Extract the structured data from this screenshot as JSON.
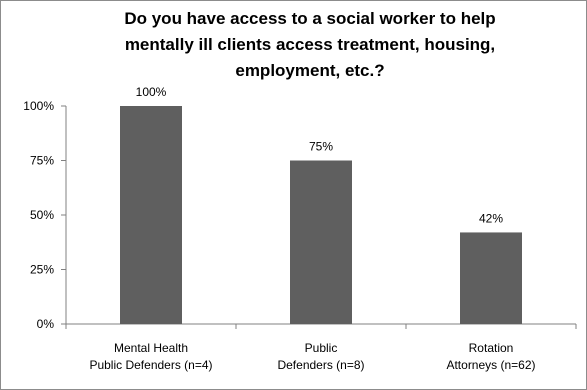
{
  "chart_data": {
    "type": "bar",
    "title_lines": [
      "Do you have access to a social worker to help",
      "mentally ill clients access treatment, housing,",
      "employment, etc.?"
    ],
    "categories": [
      [
        "Mental Health",
        "Public Defenders (n=4)"
      ],
      [
        "Public",
        "Defenders (n=8)"
      ],
      [
        "Rotation",
        "Attorneys (n=62)"
      ]
    ],
    "values": [
      100,
      75,
      42
    ],
    "data_labels": [
      "100%",
      "75%",
      "42%"
    ],
    "ylim": [
      0,
      100
    ],
    "yticks": [
      0,
      25,
      50,
      75,
      100
    ],
    "ytick_labels": [
      "0%",
      "25%",
      "50%",
      "75%",
      "100%"
    ],
    "grid": false,
    "legend": "none",
    "colors": {
      "bar": "#5f5f5f",
      "axis": "#808080",
      "frame": "#8c8c8c"
    }
  }
}
